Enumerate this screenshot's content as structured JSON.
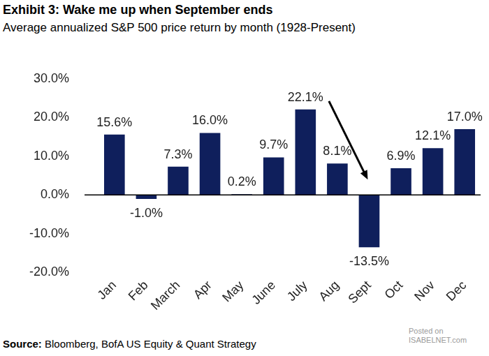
{
  "chart_data": {
    "type": "bar",
    "title": "Exhibit 3: Wake me up when September ends",
    "subtitle": "Average annualized S&P 500 price return by month (1928-Present)",
    "source_label": "Source:",
    "source": "Bloomberg, BofA US Equity & Quant Strategy",
    "watermark": [
      "Posted on",
      "ISABELNET.com"
    ],
    "categories": [
      "Jan",
      "Feb",
      "March",
      "Apr",
      "May",
      "June",
      "July",
      "Aug",
      "Sept",
      "Oct",
      "Nov",
      "Dec"
    ],
    "values": [
      15.6,
      -1.0,
      7.3,
      16.0,
      0.2,
      9.7,
      22.1,
      8.1,
      -13.5,
      6.9,
      12.1,
      17.0
    ],
    "value_labels": [
      "15.6%",
      "-1.0%",
      "7.3%",
      "16.0%",
      "0.2%",
      "9.7%",
      "22.1%",
      "8.1%",
      "-13.5%",
      "6.9%",
      "12.1%",
      "17.0%"
    ],
    "color": "#0f1f5c",
    "ylim": [
      -20,
      30
    ],
    "yticks": [
      {
        "value": -20,
        "label": "-20.0%"
      },
      {
        "value": -10,
        "label": "-10.0%"
      },
      {
        "value": 0,
        "label": "0.0%"
      },
      {
        "value": 10,
        "label": "10.0%"
      },
      {
        "value": 20,
        "label": "20.0%"
      },
      {
        "value": 30,
        "label": "30.0%"
      }
    ],
    "grid": false,
    "data_labels": true
  }
}
